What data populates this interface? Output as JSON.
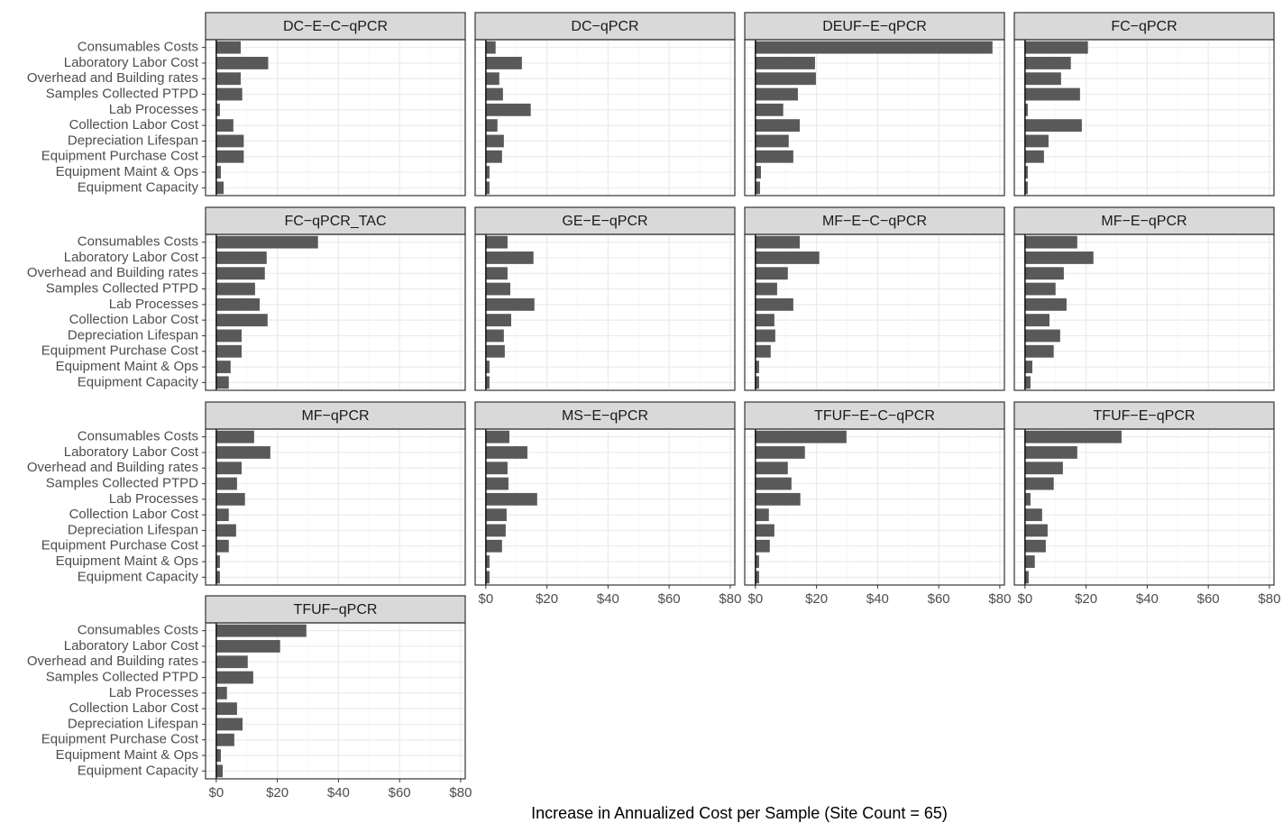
{
  "chart_data": {
    "type": "bar",
    "xlabel": "Increase in Annualized Cost per Sample (Site Count = 65)",
    "color": "#595959",
    "categories": [
      "Consumables Costs",
      "Laboratory Labor Cost",
      "Overhead and Building rates",
      "Samples Collected PTPD",
      "Lab Processes",
      "Collection Labor Cost",
      "Depreciation Lifespan",
      "Equipment Purchase Cost",
      "Equipment Maint & Ops",
      "Equipment Capacity"
    ],
    "xlim": [
      -3.5,
      81.5
    ],
    "xticks": [
      {
        "value": 0,
        "label": "$0"
      },
      {
        "value": 20,
        "label": "$20"
      },
      {
        "value": 40,
        "label": "$40"
      },
      {
        "value": 60,
        "label": "$60"
      },
      {
        "value": 80,
        "label": "$80"
      }
    ],
    "grid": true,
    "panels": [
      {
        "title": "DC−E−C−qPCR",
        "values": [
          8,
          17,
          8,
          8.5,
          1.2,
          5.6,
          9,
          9,
          1.5,
          2.4
        ]
      },
      {
        "title": "DC−qPCR",
        "values": [
          3.2,
          11.8,
          4.4,
          5.6,
          14.7,
          3.8,
          5.9,
          5.3,
          1.2,
          1.2
        ]
      },
      {
        "title": "DEUF−E−qPCR",
        "values": [
          77.6,
          19.5,
          19.8,
          13.9,
          9.1,
          14.5,
          10.9,
          12.4,
          1.8,
          1.5
        ]
      },
      {
        "title": "FC−qPCR",
        "values": [
          20.6,
          15,
          11.8,
          18,
          0.9,
          18.6,
          7.7,
          6.2,
          0.9,
          0.9
        ]
      },
      {
        "title": "FC−qPCR_TAC",
        "values": [
          33.3,
          16.5,
          15.9,
          12.7,
          14.2,
          16.8,
          8.3,
          8.3,
          4.7,
          4.1
        ]
      },
      {
        "title": "GE−E−qPCR",
        "values": [
          7.1,
          15.6,
          7.1,
          8,
          15.9,
          8.3,
          5.9,
          6.2,
          1.2,
          1.2
        ]
      },
      {
        "title": "MF−E−C−qPCR",
        "values": [
          14.5,
          20.9,
          10.6,
          7.1,
          12.4,
          6.2,
          6.5,
          5,
          1.2,
          1.2
        ]
      },
      {
        "title": "MF−E−qPCR",
        "values": [
          17.1,
          22.4,
          12.7,
          10,
          13.6,
          8,
          11.5,
          9.4,
          2.4,
          1.8
        ]
      },
      {
        "title": "MF−qPCR",
        "values": [
          12.4,
          17.7,
          8.3,
          6.8,
          9.4,
          4.1,
          6.5,
          4.1,
          1.2,
          1.2
        ]
      },
      {
        "title": "MS−E−qPCR",
        "values": [
          7.7,
          13.6,
          7.1,
          7.4,
          16.8,
          6.8,
          6.5,
          5.3,
          1.2,
          1.2
        ]
      },
      {
        "title": "TFUF−E−C−qPCR",
        "values": [
          29.8,
          16.2,
          10.6,
          11.8,
          14.7,
          4.4,
          6.2,
          4.7,
          1.2,
          1.2
        ]
      },
      {
        "title": "TFUF−E−qPCR",
        "values": [
          31.6,
          17.1,
          12.4,
          9.4,
          1.8,
          5.6,
          7.4,
          6.8,
          3.2,
          1.2
        ]
      },
      {
        "title": "TFUF−qPCR",
        "values": [
          29.5,
          20.9,
          10.3,
          12.1,
          3.5,
          6.8,
          8.6,
          5.9,
          1.5,
          2.1
        ]
      }
    ]
  }
}
